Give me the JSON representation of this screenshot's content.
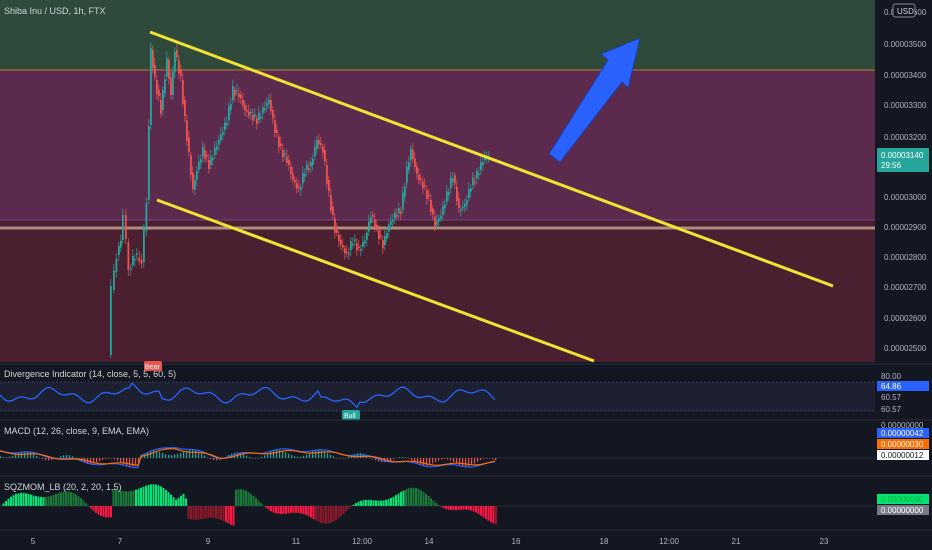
{
  "header": {
    "symbol_label": "Shiba Inu / USD, 1h, FTX",
    "currency": "USD"
  },
  "price_axis": {
    "ticks": [
      "0.00003600",
      "0.00003500",
      "0.00003400",
      "0.00003300",
      "0.00003200",
      "0.00003000",
      "0.00002900",
      "0.00002800",
      "0.00002700",
      "0.00002600",
      "0.00002500"
    ],
    "current_price": "0.00003140",
    "countdown": "29:56"
  },
  "time_axis": {
    "ticks": [
      "5",
      "7",
      "9",
      "11",
      "12:00",
      "14",
      "16",
      "18",
      "12:00",
      "21",
      "23"
    ]
  },
  "indicators": {
    "divergence": {
      "title": "Divergence Indicator (14, close, 5, 5, 60, 5)",
      "levels": [
        "80.00",
        "60.57",
        "60.57"
      ],
      "value": "64.86",
      "bear_label": "Bear",
      "bull_label": "Bull"
    },
    "macd": {
      "title": "MACD (12, 26, close, 9, EMA, EMA)",
      "top_level": "0.00000000",
      "values": [
        "0.00000042",
        "0.00000030",
        "0.00000012"
      ]
    },
    "sqzmom": {
      "title": "SQZMOM_LB (20, 2, 20, 1.5)",
      "values": [
        "0.00000000",
        "0.00000000"
      ]
    }
  },
  "colors": {
    "background": "#131722",
    "bull_candle": "#26a69a",
    "bear_candle": "#ef5350",
    "zone_top": "#2f4a3a",
    "zone_mid": "#5b2a4d",
    "zone_low": "#4a2030",
    "channel": "#f2e233",
    "arrow": "#2962ff",
    "divergence_line": "#2962ff",
    "macd_line": "#2962ff",
    "signal_line": "#ff6d00",
    "sqz_up": "#00e676",
    "sqz_down": "#ff1744"
  },
  "drawings": {
    "channel": "descending-channel",
    "arrow": "up-arrow"
  }
}
